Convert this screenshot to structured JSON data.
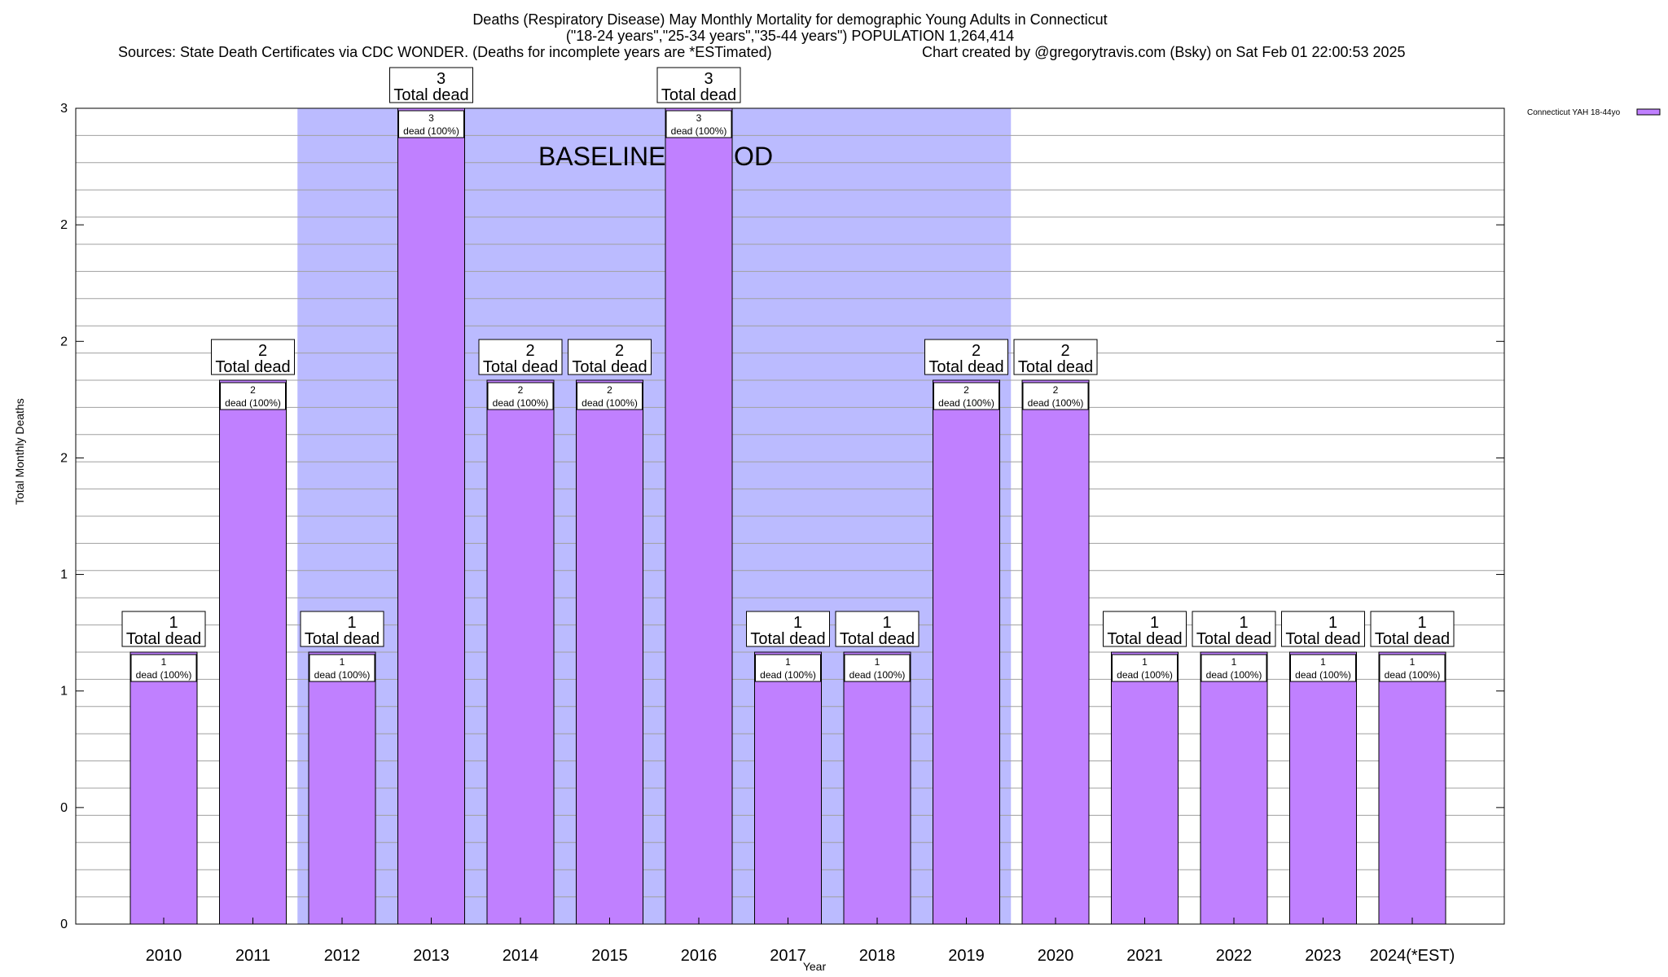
{
  "title": {
    "line1": "Deaths (Respiratory Disease) May Monthly Mortality for demographic Young Adults in Connecticut",
    "line2": "(\"18-24 years\",\"25-34 years\",\"35-44 years\") POPULATION 1,264,414",
    "line3": "Sources: State Death Certificates via CDC WONDER. (Deaths for incomplete years are *ESTimated)",
    "line4": "Chart created by @gregorytravis.com (Bsky) on Sat Feb 01 22:00:53 2025"
  },
  "colors": {
    "bar_fill": "#c080ff",
    "bar_stroke": "#000000",
    "baseline_fill": "#bbbbff",
    "grid": "#a0a0a0"
  },
  "chart_data": {
    "type": "bar",
    "categories": [
      "2010",
      "2011",
      "2012",
      "2013",
      "2014",
      "2015",
      "2016",
      "2017",
      "2018",
      "2019",
      "2020",
      "2021",
      "2022",
      "2023",
      "2024(*EST)"
    ],
    "series": [
      {
        "name": "Connecticut YAH 18-44yo",
        "values": [
          1,
          2,
          1,
          3,
          2,
          2,
          3,
          1,
          1,
          2,
          2,
          1,
          1,
          1,
          1
        ]
      }
    ],
    "total_label_text": "Total dead",
    "inner_label_suffix": "dead (100%)",
    "xlabel": "Year",
    "ylabel": "Total Monthly Deaths",
    "ylim": [
      0,
      3
    ],
    "ytick_labels": [
      "0",
      "0",
      "1",
      "1",
      "2",
      "2",
      "2",
      "3"
    ],
    "baseline": {
      "label": "BASELINE PERIOD",
      "start": "2012",
      "end": "2019"
    },
    "legend": {
      "label": "Connecticut YAH 18-44yo",
      "position": "top-right"
    }
  }
}
